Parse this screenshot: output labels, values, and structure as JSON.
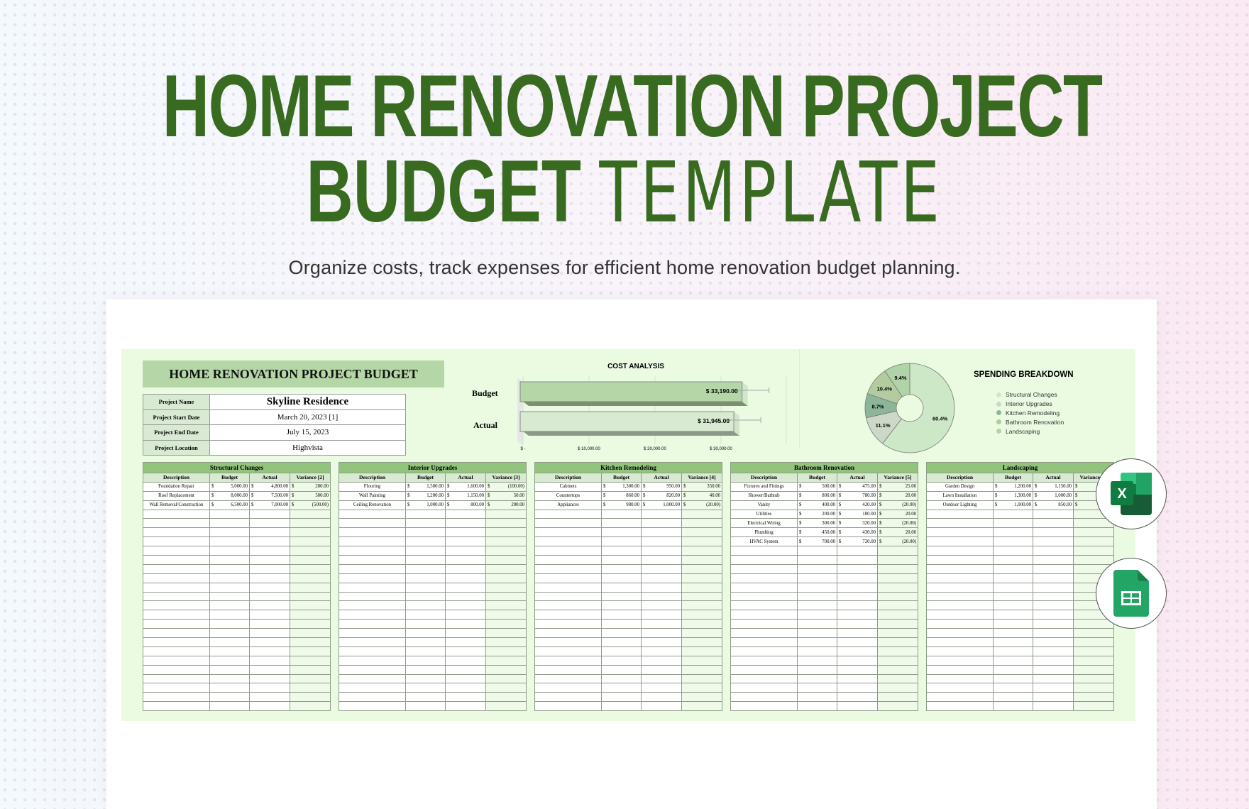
{
  "hero": {
    "title_line1": "HOME RENOVATION PROJECT",
    "title_bold2": "BUDGET",
    "title_thin2": "TEMPLATE",
    "subtitle": "Organize costs, track expenses for efficient home renovation budget planning."
  },
  "sheet": {
    "title": "HOME RENOVATION PROJECT BUDGET",
    "info": [
      {
        "label": "Project Name",
        "value": "Skyline Residence"
      },
      {
        "label": "Project Start Date",
        "value": "March 20, 2023 [1]"
      },
      {
        "label": "Project End Date",
        "value": "July 15, 2023"
      },
      {
        "label": "Project Location",
        "value": "Highvista"
      }
    ]
  },
  "chart_data": [
    {
      "type": "bar",
      "orientation": "horizontal",
      "title": "COST ANALYSIS",
      "categories": [
        "Budget",
        "Actual"
      ],
      "values": [
        33190,
        31945
      ],
      "data_labels": [
        "$ 33,190.00",
        "$ 31,945.00"
      ],
      "xlim": [
        0,
        35000
      ],
      "x_ticks": [
        "$ -",
        "$ 10,000.00",
        "$ 20,000.00",
        "$ 30,000.00"
      ],
      "x_tick_values": [
        0,
        10000,
        20000,
        30000
      ],
      "grid": true,
      "colors": [
        "#b5d6a7",
        "#d9ead3"
      ]
    },
    {
      "type": "pie",
      "title": "SPENDING BREAKDOWN",
      "donut": true,
      "legend": "right",
      "labels": [
        "Structural Changes",
        "Interior Upgrades",
        "Kitchen Remodeling",
        "Bathroom Renovation",
        "Landscaping"
      ],
      "values": [
        60.4,
        11.1,
        8.7,
        10.4,
        9.4
      ],
      "data_labels": [
        "60.4%",
        "11.1%",
        "8.7%",
        "10.4%",
        "9.4%"
      ],
      "colors": [
        "#cde8c7",
        "#cdd8c8",
        "#8db59a",
        "#b3cc9f",
        "#b0d3a8"
      ]
    }
  ],
  "columns": [
    "Description",
    "Budget",
    "Actual"
  ],
  "currency": "$",
  "tables": [
    {
      "title": "Structural Changes",
      "variance_label": "Variance [2]",
      "rows": [
        [
          "Foundation Repair",
          "5,000.00",
          "4,800.00",
          "200.00"
        ],
        [
          "Roof Replacement",
          "8,000.00",
          "7,500.00",
          "500.00"
        ],
        [
          "Wall Removal/Construction",
          "6,500.00",
          "7,000.00",
          "(500.00)"
        ]
      ]
    },
    {
      "title": "Interior Upgrades",
      "variance_label": "Variance [3]",
      "rows": [
        [
          "Flooring",
          "1,500.00",
          "1,600.00",
          "(100.00)"
        ],
        [
          "Wall Painting",
          "1,200.00",
          "1,150.00",
          "50.00"
        ],
        [
          "Ceiling Renovation",
          "1,000.00",
          "800.00",
          "200.00"
        ]
      ]
    },
    {
      "title": "Kitchen Remodeling",
      "variance_label": "Variance [4]",
      "rows": [
        [
          "Cabinets",
          "1,300.00",
          "950.00",
          "350.00"
        ],
        [
          "Countertops",
          "860.00",
          "820.00",
          "40.00"
        ],
        [
          "Appliances",
          "980.00",
          "1,000.00",
          "(20.00)"
        ]
      ]
    },
    {
      "title": "Bathroom Renovation",
      "variance_label": "Variance [5]",
      "rows": [
        [
          "Fixtures and Fittings",
          "500.00",
          "475.00",
          "25.00"
        ],
        [
          "Shower/Bathtub",
          "800.00",
          "780.00",
          "20.00"
        ],
        [
          "Vanity",
          "400.00",
          "420.00",
          "(20.00)"
        ],
        [
          "Utilities",
          "200.00",
          "180.00",
          "20.00"
        ],
        [
          "Electrical Wiring",
          "300.00",
          "320.00",
          "(20.00)"
        ],
        [
          "Plumbing",
          "450.00",
          "430.00",
          "20.00"
        ],
        [
          "HVAC System",
          "700.00",
          "720.00",
          "(20.00)"
        ]
      ]
    },
    {
      "title": "Landscaping",
      "variance_label": "Variance [6]",
      "rows": [
        [
          "Garden Design",
          "1,200.00",
          "1,150.00",
          ""
        ],
        [
          "Lawn Installation",
          "1,300.00",
          "1,000.00",
          ""
        ],
        [
          "Outdoor Lighting",
          "1,000.00",
          "850.00",
          ""
        ]
      ]
    }
  ],
  "badges": [
    {
      "icon": "excel-icon",
      "letter": "X"
    },
    {
      "icon": "google-sheets-icon"
    }
  ],
  "colors": {
    "brand_green": "#386a1f",
    "panel": "#eafbe2",
    "header": "#93c47d",
    "subheader": "#d9ead3"
  }
}
